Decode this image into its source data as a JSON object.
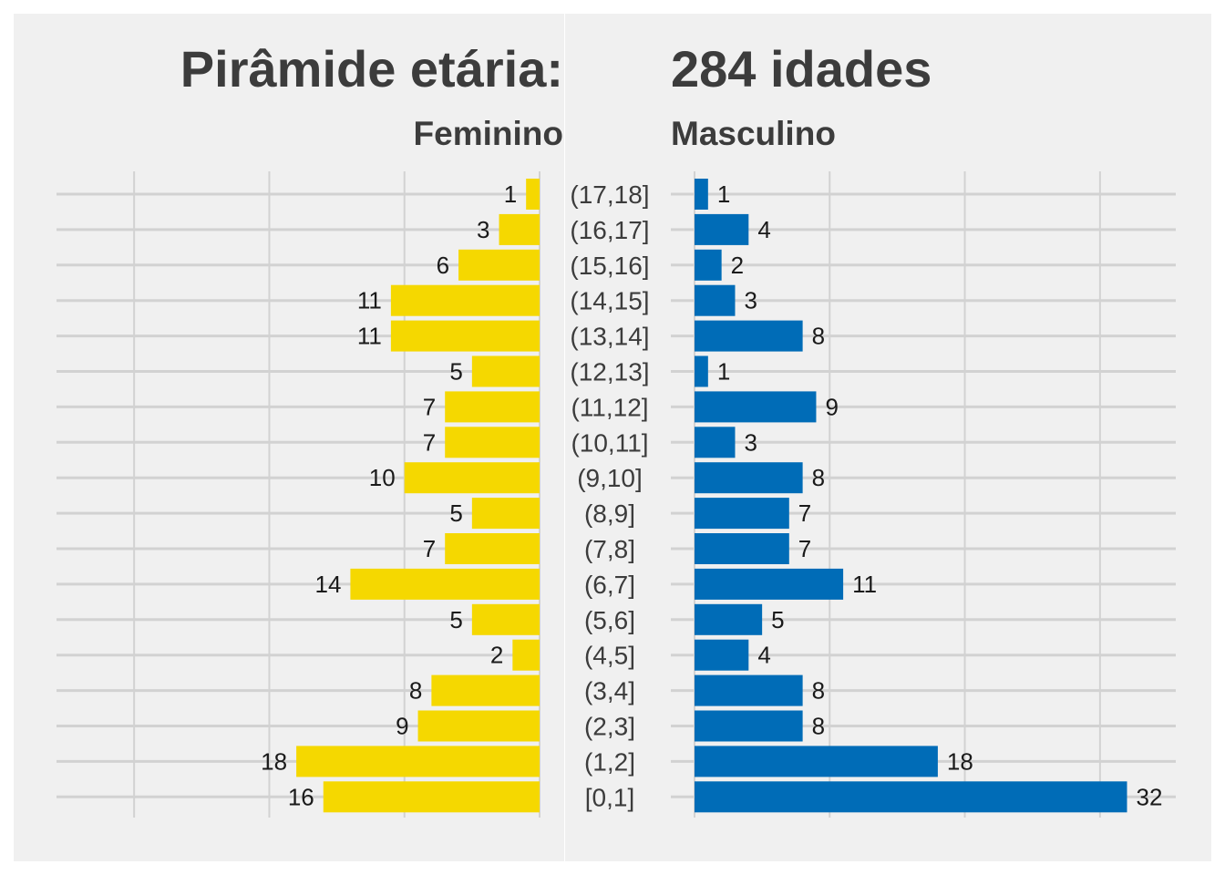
{
  "chart_data": {
    "type": "bar",
    "title_left": "Pirâmide etária:",
    "title_right": "284 idades",
    "categories": [
      "(17,18]",
      "(16,17]",
      "(15,16]",
      "(14,15]",
      "(13,14]",
      "(12,13]",
      "(11,12]",
      "(10,11]",
      "(9,10]",
      "(8,9]",
      "(7,8]",
      "(6,7]",
      "(5,6]",
      "(4,5]",
      "(3,4]",
      "(2,3]",
      "(1,2]",
      "[0,1]"
    ],
    "series": [
      {
        "name": "Feminino",
        "color": "#f5d800",
        "values": [
          1,
          3,
          6,
          11,
          11,
          5,
          7,
          7,
          10,
          5,
          7,
          14,
          5,
          2,
          8,
          9,
          18,
          16
        ]
      },
      {
        "name": "Masculino",
        "color": "#006cb7",
        "values": [
          1,
          4,
          2,
          3,
          8,
          1,
          9,
          3,
          8,
          7,
          7,
          11,
          5,
          4,
          8,
          8,
          18,
          32
        ]
      }
    ],
    "xlim": [
      0,
      32
    ],
    "grid": true,
    "orientation": "horizontal",
    "background": "#f0f0f0"
  }
}
